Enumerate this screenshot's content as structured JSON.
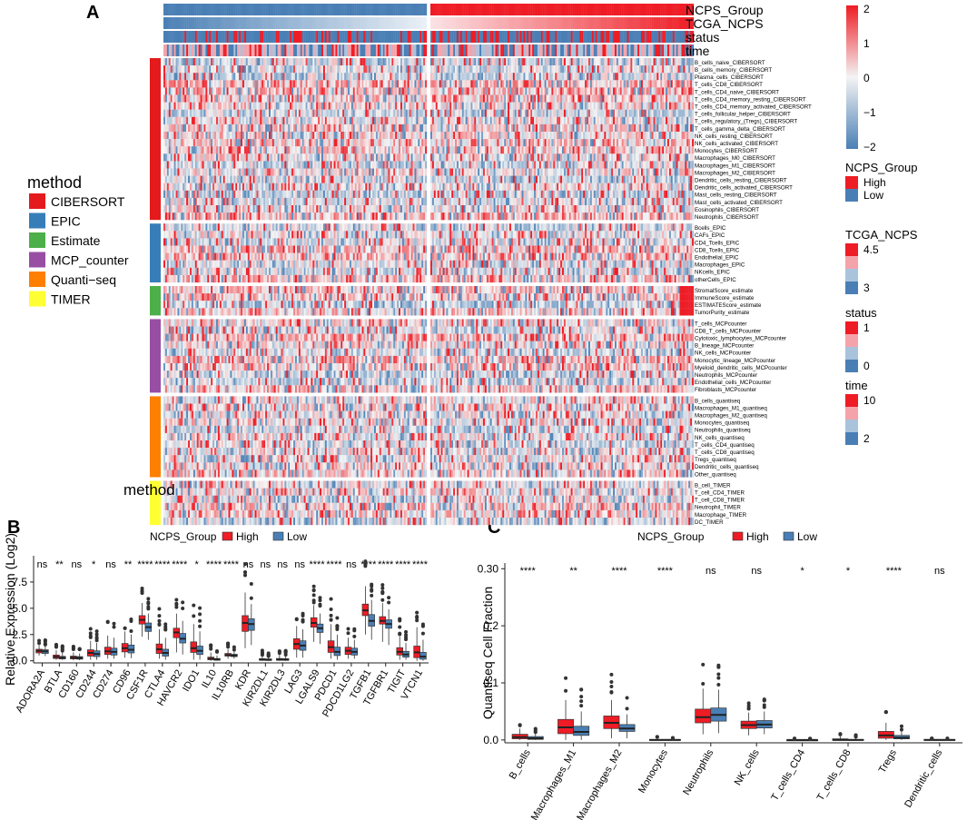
{
  "colors": {
    "high": "#ee1c25",
    "low": "#4a7fb5",
    "mid": "#f4f4f4",
    "light_high": "#f5a3ab",
    "light_low": "#a9c3dd",
    "CIBERSORT": "#e41a1c",
    "EPIC": "#377eb8",
    "Estimate": "#4daf4a",
    "MCP_counter": "#984ea3",
    "Quanti-seq": "#ff7f00",
    "TIMER": "#ffff33",
    "median": "#222222",
    "box_border": "#333333"
  },
  "panel_labels": {
    "a": "A",
    "b": "B",
    "c": "C"
  },
  "heatmap": {
    "top_tracks": [
      "NCPS_Group",
      "TCGA_NCPS",
      "status",
      "time"
    ],
    "samples_per_group": 150,
    "bottom_label": "method",
    "method_legend": {
      "title": "method",
      "entries": [
        {
          "label": "CIBERSORT",
          "key": "CIBERSORT"
        },
        {
          "label": "EPIC",
          "key": "EPIC"
        },
        {
          "label": "Estimate",
          "key": "Estimate"
        },
        {
          "label": "MCP_counter",
          "key": "MCP_counter"
        },
        {
          "label": "Quanti−seq",
          "key": "Quanti-seq"
        },
        {
          "label": "TIMER",
          "key": "TIMER"
        }
      ]
    },
    "groups": [
      {
        "method": "CIBERSORT",
        "rows": [
          "B_cells_naive_CIBERSORT",
          "B_cells_memory_CIBERSORT",
          "Plasma_cells_CIBERSORT",
          "T_cells_CD8_CIBERSORT",
          "T_cells_CD4_naive_CIBERSORT",
          "T_cells_CD4_memory_resting_CIBERSORT",
          "T_cells_CD4_memory_activated_CIBERSORT",
          "T_cells_follicular_helper_CIBERSORT",
          "T_cells_regulatory_(Tregs)_CIBERSORT",
          "T_cells_gamma_delta_CIBERSORT",
          "NK_cells_resting_CIBERSORT",
          "NK_cells_activated_CIBERSORT",
          "Monocytes_CIBERSORT",
          "Macrophages_M0_CIBERSORT",
          "Macrophages_M1_CIBERSORT",
          "Macrophages_M2_CIBERSORT",
          "Dendritic_cells_resting_CIBERSORT",
          "Dendritic_cells_activated_CIBERSORT",
          "Mast_cells_resting_CIBERSORT",
          "Mast_cells_activated_CIBERSORT",
          "Eosinophils_CIBERSORT",
          "Neutrophils_CIBERSORT"
        ]
      },
      {
        "method": "EPIC",
        "rows": [
          "Bcells_EPIC",
          "CAFs_EPIC",
          "CD4_Tcells_EPIC",
          "CD8_Tcells_EPIC",
          "Endothelial_EPIC",
          "Macrophages_EPIC",
          "NKcells_EPIC",
          "otherCells_EPIC"
        ]
      },
      {
        "method": "Estimate",
        "rows": [
          "StromalScore_estimate",
          "ImmuneScore_estimate",
          "ESTIMATEScore_estimate",
          "TumorPurity_estimate"
        ]
      },
      {
        "method": "MCP_counter",
        "rows": [
          "T_cells_MCPcounter",
          "CD8_T_cells_MCPcounter",
          "Cytotoxic_lymphocytes_MCPcounter",
          "B_lineage_MCPcounter",
          "NK_cells_MCPcounter",
          "Monocytic_lineage_MCPcounter",
          "Myeloid_dendritic_cells_MCPcounter",
          "Neutrophils_MCPcounter",
          "Endothelial_cells_MCPcounter",
          "Fibroblasts_MCPcounter"
        ]
      },
      {
        "method": "Quanti-seq",
        "rows": [
          "B_cells_quantiseq",
          "Macrophages_M1_quantiseq",
          "Macrophages_M2_quantiseq",
          "Monocytes_quantiseq",
          "Neutrophils_quantiseq",
          "NK_cells_quantiseq",
          "T_cells_CD4_quantiseq",
          "T_cells_CD8_quantiseq",
          "Tregs_quantiseq",
          "Dendritic_cells_quantiseq",
          "Other_quantiseq"
        ]
      },
      {
        "method": "TIMER",
        "rows": [
          "B_cell_TIMER",
          "T_cell_CD4_TIMER",
          "T_cell_CD8_TIMER",
          "Neutrophil_TIMER",
          "Macrophage_TIMER",
          "DC_TIMER"
        ]
      }
    ],
    "scale_legend": {
      "ticks": [
        2,
        1,
        0,
        -1,
        -2
      ],
      "labels": [
        "2",
        "1",
        "0",
        "−1",
        "−2"
      ]
    },
    "legends": [
      {
        "title": "NCPS_Group",
        "labels": [
          "High",
          "Low"
        ]
      },
      {
        "title": "TCGA_NCPS",
        "labels": [
          "4.5",
          "",
          "",
          "3"
        ]
      },
      {
        "title": "status",
        "labels": [
          "1",
          "",
          "",
          "0"
        ]
      },
      {
        "title": "time",
        "labels": [
          "10",
          "",
          "",
          "2"
        ]
      }
    ]
  },
  "chart_data": [
    {
      "type": "boxplot",
      "panel": "B",
      "legend_title": "NCPS_Group",
      "legend": [
        "High",
        "Low"
      ],
      "ylabel": "Relative Expression (Log2)",
      "ylim": [
        -0.2,
        10
      ],
      "yticks": [
        0.0,
        2.5,
        5.0,
        7.5
      ],
      "ytick_labels": [
        "0.0",
        "2.5",
        "5.0",
        "7.5"
      ],
      "categories": [
        "ADORA2A",
        "BTLA",
        "CD160",
        "CD244",
        "CD274",
        "CD96",
        "CSF1R",
        "CTLA4",
        "HAVCR2",
        "IDO1",
        "IL10",
        "IL10RB",
        "KDR",
        "KIR2DL1",
        "KIR2DL3",
        "LAG3",
        "LGALS9",
        "PDCD1",
        "PDCD1LG2",
        "TGFB1",
        "TGFBR1",
        "TIGIT",
        "VTCN1"
      ],
      "significance": [
        "ns",
        "**",
        "ns",
        "*",
        "ns",
        "**",
        "****",
        "****",
        "****",
        "*",
        "****",
        "****",
        "ns",
        "ns",
        "ns",
        "ns",
        "****",
        "****",
        "ns",
        "****",
        "****",
        "****",
        "****"
      ],
      "series": [
        {
          "name": "High",
          "stats": [
            [
              0.5,
              0.75,
              0.95,
              1.1,
              1.5
            ],
            [
              0.1,
              0.22,
              0.38,
              0.55,
              1.0
            ],
            [
              0.05,
              0.18,
              0.3,
              0.45,
              0.8
            ],
            [
              0.1,
              0.45,
              0.75,
              1.05,
              1.9
            ],
            [
              0.2,
              0.6,
              0.9,
              1.3,
              2.4
            ],
            [
              0.3,
              0.85,
              1.2,
              1.65,
              2.8
            ],
            [
              2.3,
              3.5,
              3.9,
              4.3,
              5.5
            ],
            [
              0.2,
              0.7,
              1.1,
              1.6,
              3.0
            ],
            [
              0.8,
              2.2,
              2.7,
              3.1,
              4.5
            ],
            [
              0.1,
              0.8,
              1.2,
              1.8,
              3.5
            ],
            [
              0.0,
              0.1,
              0.2,
              0.35,
              0.8
            ],
            [
              0.2,
              0.45,
              0.55,
              0.7,
              1.1
            ],
            [
              1.2,
              2.8,
              3.6,
              4.3,
              6.5
            ],
            [
              0.0,
              0.05,
              0.1,
              0.2,
              0.5
            ],
            [
              0.0,
              0.05,
              0.12,
              0.22,
              0.6
            ],
            [
              0.3,
              1.1,
              1.6,
              2.1,
              3.3
            ],
            [
              1.8,
              3.2,
              3.6,
              4.1,
              5.3
            ],
            [
              0.2,
              0.8,
              1.3,
              1.9,
              3.5
            ],
            [
              0.2,
              0.6,
              0.95,
              1.3,
              2.2
            ],
            [
              2.5,
              4.3,
              4.8,
              5.4,
              7.1
            ],
            [
              1.8,
              3.5,
              3.8,
              4.2,
              5.5
            ],
            [
              0.1,
              0.55,
              0.85,
              1.25,
              2.3
            ],
            [
              0.0,
              0.3,
              0.8,
              1.4,
              3.2
            ]
          ]
        },
        {
          "name": "Low",
          "stats": [
            [
              0.45,
              0.7,
              0.9,
              1.05,
              1.4
            ],
            [
              0.08,
              0.18,
              0.3,
              0.42,
              0.8
            ],
            [
              0.05,
              0.16,
              0.27,
              0.4,
              0.7
            ],
            [
              0.1,
              0.4,
              0.65,
              0.95,
              1.7
            ],
            [
              0.2,
              0.55,
              0.85,
              1.2,
              2.2
            ],
            [
              0.25,
              0.75,
              1.05,
              1.5,
              2.5
            ],
            [
              2.0,
              2.8,
              3.2,
              3.6,
              4.5
            ],
            [
              0.1,
              0.45,
              0.75,
              1.1,
              2.2
            ],
            [
              0.6,
              1.7,
              2.1,
              2.6,
              3.8
            ],
            [
              0.1,
              0.6,
              0.95,
              1.4,
              2.8
            ],
            [
              0.0,
              0.06,
              0.12,
              0.22,
              0.5
            ],
            [
              0.2,
              0.4,
              0.5,
              0.62,
              0.9
            ],
            [
              1.5,
              2.9,
              3.5,
              4.0,
              5.4
            ],
            [
              0.0,
              0.04,
              0.09,
              0.18,
              0.4
            ],
            [
              0.0,
              0.05,
              0.1,
              0.2,
              0.5
            ],
            [
              0.3,
              1.0,
              1.45,
              1.9,
              3.0
            ],
            [
              1.6,
              2.7,
              3.1,
              3.5,
              4.5
            ],
            [
              0.1,
              0.5,
              0.85,
              1.3,
              2.5
            ],
            [
              0.2,
              0.55,
              0.85,
              1.2,
              2.0
            ],
            [
              2.0,
              3.3,
              3.8,
              4.4,
              5.8
            ],
            [
              1.5,
              3.1,
              3.5,
              3.9,
              4.9
            ],
            [
              0.1,
              0.35,
              0.6,
              0.9,
              1.7
            ],
            [
              0.0,
              0.15,
              0.4,
              0.8,
              2.0
            ]
          ]
        }
      ]
    },
    {
      "type": "boxplot",
      "panel": "C",
      "legend_title": "NCPS_Group",
      "legend": [
        "High",
        "Low"
      ],
      "ylabel": "Quantiseq Cell Fraction",
      "ylim": [
        -0.005,
        0.31
      ],
      "yticks": [
        0.0,
        0.1,
        0.2,
        0.3
      ],
      "ytick_labels": [
        "0.0",
        "0.1",
        "0.2",
        "0.30"
      ],
      "categories": [
        "B_cells",
        "Macrophages_M1",
        "Macrophages_M2",
        "Monocytes",
        "Neutrophils",
        "NK_cells",
        "T_cells_CD4",
        "T_cells_CD8",
        "Tregs",
        "Dendritic_cells"
      ],
      "significance": [
        "****",
        "**",
        "****",
        "****",
        "ns",
        "ns",
        "*",
        "*",
        "****",
        "ns"
      ],
      "series": [
        {
          "name": "High",
          "stats": [
            [
              0,
              0.002,
              0.005,
              0.01,
              0.02
            ],
            [
              0,
              0.011,
              0.022,
              0.036,
              0.07
            ],
            [
              0.003,
              0.02,
              0.03,
              0.042,
              0.07
            ],
            [
              0,
              0,
              0,
              0.001,
              0.003
            ],
            [
              0.01,
              0.03,
              0.04,
              0.054,
              0.09
            ],
            [
              0.008,
              0.02,
              0.026,
              0.033,
              0.048
            ],
            [
              0,
              0,
              0,
              0,
              0.001
            ],
            [
              0,
              0,
              0,
              0.002,
              0.006
            ],
            [
              0,
              0.003,
              0.008,
              0.015,
              0.03
            ],
            [
              0,
              0,
              0,
              0.001,
              0.002
            ]
          ]
        },
        {
          "name": "Low",
          "stats": [
            [
              0,
              0.001,
              0.003,
              0.006,
              0.012
            ],
            [
              0,
              0.008,
              0.014,
              0.024,
              0.05
            ],
            [
              0.003,
              0.015,
              0.02,
              0.027,
              0.045
            ],
            [
              0,
              0,
              0,
              0.001,
              0.002
            ],
            [
              0.012,
              0.033,
              0.044,
              0.056,
              0.088
            ],
            [
              0.01,
              0.021,
              0.027,
              0.034,
              0.05
            ],
            [
              0,
              0,
              0,
              0,
              0.001
            ],
            [
              0,
              0,
              0,
              0.001,
              0.004
            ],
            [
              0,
              0.002,
              0.004,
              0.008,
              0.016
            ],
            [
              0,
              0,
              0,
              0.001,
              0.002
            ]
          ]
        }
      ]
    }
  ]
}
